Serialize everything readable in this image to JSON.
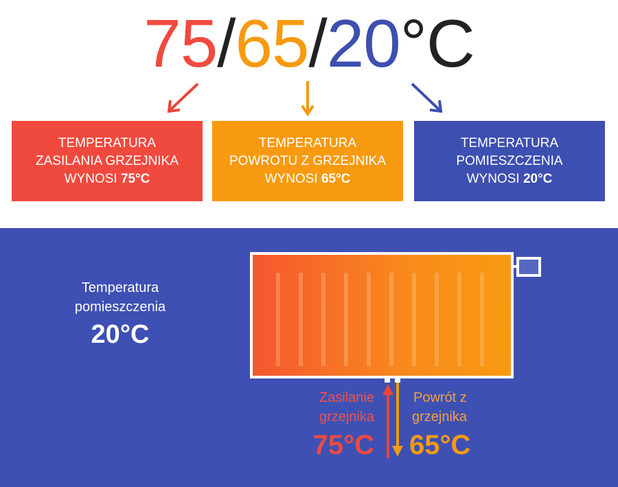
{
  "heading": {
    "supply": "75",
    "sep1": "/",
    "return": "65",
    "sep2": "/",
    "room": "20",
    "unit": "°C"
  },
  "colors": {
    "supply": "#f04a3f",
    "return": "#f79a10",
    "room": "#3d4fb0",
    "panel": "#3e50b4"
  },
  "boxes": [
    {
      "line1": "TEMPERATURA",
      "line2": "ZASILANIA GRZEJNIKA",
      "line3": "WYNOSI ",
      "value": "75°C"
    },
    {
      "line1": "TEMPERATURA",
      "line2": "POWROTU Z GRZEJNIKA",
      "line3": "WYNOSI ",
      "value": "65°C"
    },
    {
      "line1": "TEMPERATURA",
      "line2": "POMIESZCZENIA",
      "line3": "WYNOSI ",
      "value": "20°C"
    }
  ],
  "room": {
    "line1": "Temperatura",
    "line2": "pomieszczenia",
    "value": "20°C"
  },
  "supply": {
    "line1": "Zasilanie",
    "line2": "grzejnika",
    "value": "75°C"
  },
  "return": {
    "line1": "Powrót z",
    "line2": "grzejnika",
    "value": "65°C"
  }
}
